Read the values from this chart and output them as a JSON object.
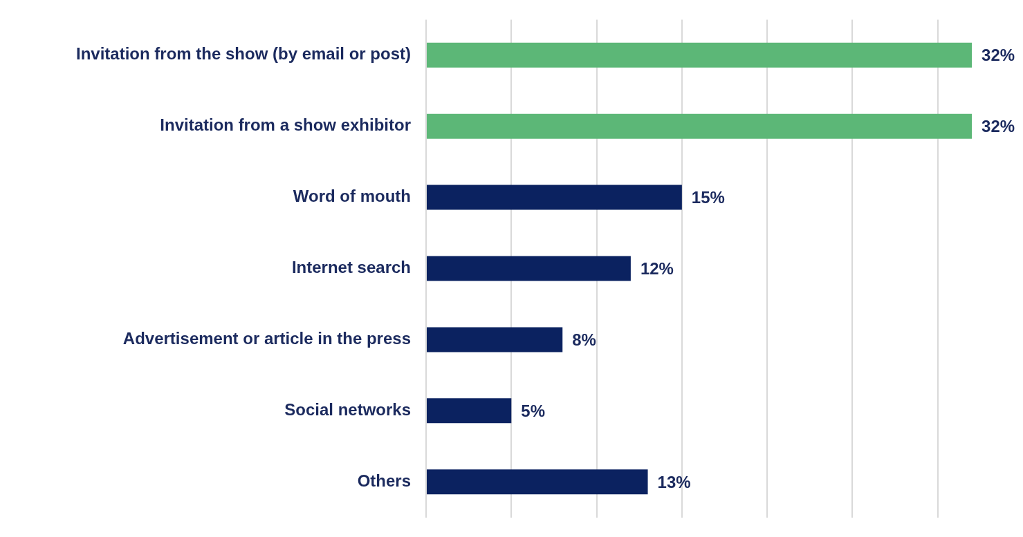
{
  "chart_data": {
    "type": "bar",
    "orientation": "horizontal",
    "categories": [
      "Invitation from the show (by email or post)",
      "Invitation from a show exhibitor",
      "Word of mouth",
      "Internet search",
      "Advertisement or article in the press",
      "Social networks",
      "Others"
    ],
    "values": [
      32,
      32,
      15,
      12,
      8,
      5,
      13
    ],
    "colors": [
      "#5cb777",
      "#5cb777",
      "#0b2260",
      "#0b2260",
      "#0b2260",
      "#0b2260",
      "#0b2260"
    ],
    "value_labels": [
      "32%",
      "32%",
      "15%",
      "12%",
      "8%",
      "5%",
      "13%"
    ],
    "xticks": [
      {
        "value": 0,
        "label": null
      },
      {
        "value": 5,
        "label": null
      },
      {
        "value": 10,
        "label": null
      },
      {
        "value": 15,
        "label": null
      },
      {
        "value": 20,
        "label": null
      },
      {
        "value": 25,
        "label": null
      },
      {
        "value": 30,
        "label": null
      }
    ],
    "grid": "x",
    "tick_labels": "y",
    "legend": false
  }
}
